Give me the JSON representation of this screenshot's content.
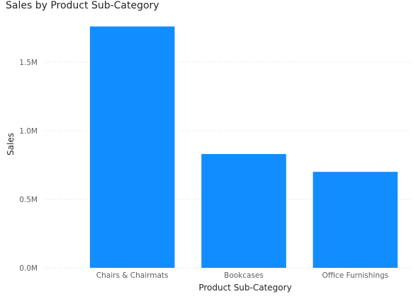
{
  "chart_data": {
    "type": "bar",
    "title": "Sales by Product Sub-Category",
    "xlabel": "Product Sub-Category",
    "ylabel": "Sales",
    "categories": [
      "Chairs & Chairmats",
      "Bookcases",
      "Office Furnishings"
    ],
    "values": [
      1760000,
      830000,
      700000
    ],
    "ylim": [
      0,
      1850000
    ],
    "yticks": [
      0,
      500000,
      1000000,
      1500000
    ],
    "ytick_labels": [
      "0.0M",
      "0.5M",
      "1.0M",
      "1.5M"
    ],
    "grid": true,
    "bar_color": "#118dff",
    "grid_color": "#e1dfdd"
  }
}
